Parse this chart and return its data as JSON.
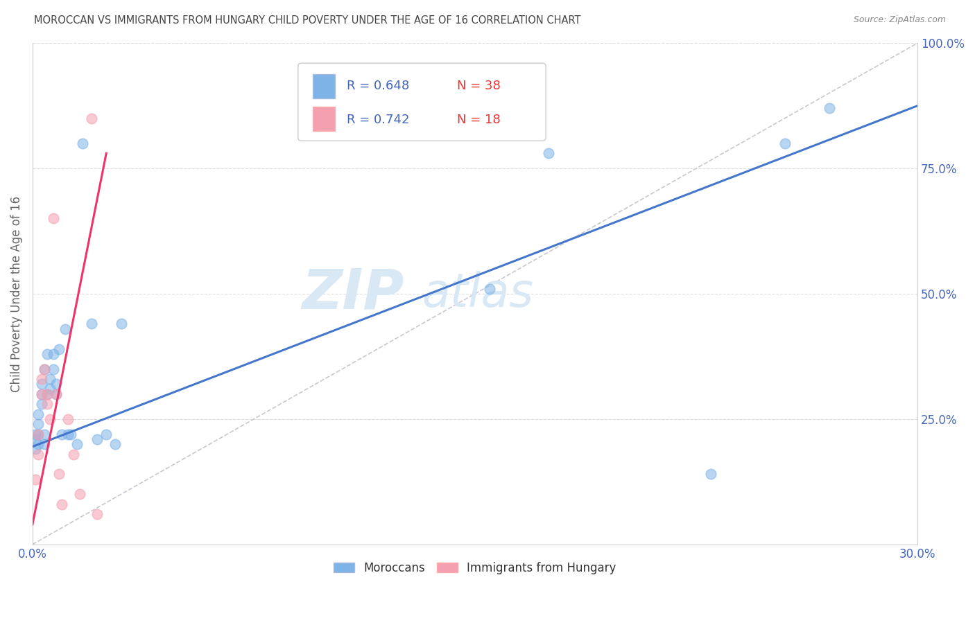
{
  "title": "MOROCCAN VS IMMIGRANTS FROM HUNGARY CHILD POVERTY UNDER THE AGE OF 16 CORRELATION CHART",
  "source": "Source: ZipAtlas.com",
  "ylabel": "Child Poverty Under the Age of 16",
  "watermark": "ZIPatlas",
  "xlim": [
    0.0,
    0.3
  ],
  "ylim": [
    0.0,
    1.0
  ],
  "xticks": [
    0.0,
    0.05,
    0.1,
    0.15,
    0.2,
    0.25,
    0.3
  ],
  "xticklabels": [
    "0.0%",
    "",
    "",
    "",
    "",
    "",
    "30.0%"
  ],
  "yticks_right": [
    0.25,
    0.5,
    0.75,
    1.0
  ],
  "yticklabels_right": [
    "25.0%",
    "50.0%",
    "75.0%",
    "100.0%"
  ],
  "legend_r1": "R = 0.648",
  "legend_n1": "N = 38",
  "legend_r2": "R = 0.742",
  "legend_n2": "N = 18",
  "legend_label1": "Moroccans",
  "legend_label2": "Immigrants from Hungary",
  "scatter_blue_x": [
    0.001,
    0.001,
    0.001,
    0.002,
    0.002,
    0.002,
    0.002,
    0.003,
    0.003,
    0.003,
    0.004,
    0.004,
    0.004,
    0.005,
    0.005,
    0.006,
    0.006,
    0.007,
    0.007,
    0.008,
    0.008,
    0.009,
    0.01,
    0.011,
    0.012,
    0.013,
    0.015,
    0.017,
    0.02,
    0.022,
    0.025,
    0.028,
    0.03,
    0.155,
    0.175,
    0.23,
    0.255,
    0.27
  ],
  "scatter_blue_y": [
    0.19,
    0.21,
    0.22,
    0.2,
    0.22,
    0.24,
    0.26,
    0.28,
    0.3,
    0.32,
    0.2,
    0.22,
    0.35,
    0.3,
    0.38,
    0.31,
    0.33,
    0.35,
    0.38,
    0.3,
    0.32,
    0.39,
    0.22,
    0.43,
    0.22,
    0.22,
    0.2,
    0.8,
    0.44,
    0.21,
    0.22,
    0.2,
    0.44,
    0.51,
    0.78,
    0.14,
    0.8,
    0.87
  ],
  "scatter_pink_x": [
    0.001,
    0.002,
    0.002,
    0.003,
    0.003,
    0.004,
    0.005,
    0.005,
    0.006,
    0.007,
    0.008,
    0.009,
    0.01,
    0.012,
    0.014,
    0.016,
    0.02,
    0.022
  ],
  "scatter_pink_y": [
    0.13,
    0.18,
    0.22,
    0.3,
    0.33,
    0.35,
    0.28,
    0.3,
    0.25,
    0.65,
    0.3,
    0.14,
    0.08,
    0.25,
    0.18,
    0.1,
    0.85,
    0.06
  ],
  "blue_line_x": [
    0.0,
    0.3
  ],
  "blue_line_y": [
    0.195,
    0.875
  ],
  "pink_line_x": [
    0.0,
    0.025
  ],
  "pink_line_y": [
    0.04,
    0.78
  ],
  "ref_line_x": [
    0.0,
    0.3
  ],
  "ref_line_y": [
    0.0,
    1.0
  ],
  "blue_color": "#7EB3E8",
  "pink_color": "#F5A0B0",
  "blue_line_color": "#4477CC",
  "pink_line_color": "#EE3366",
  "ref_line_color": "#C8C8D0",
  "text_color": "#4466BB",
  "title_color": "#444444",
  "watermark_color": "#D8E8F5",
  "background_color": "#FFFFFF",
  "grid_color": "#DDDDDD"
}
